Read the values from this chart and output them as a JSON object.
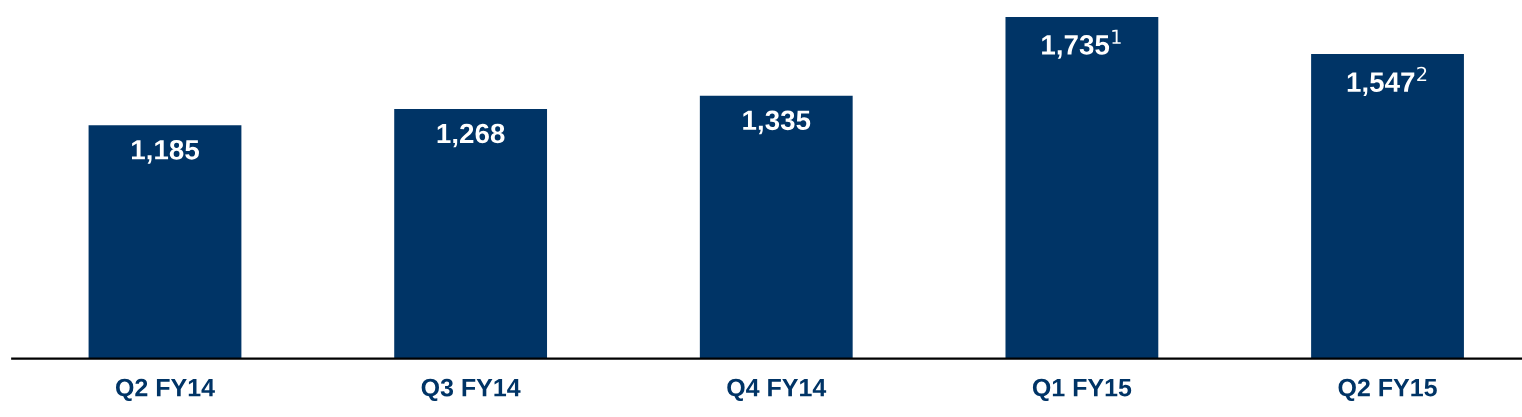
{
  "chart_data": {
    "type": "bar",
    "categories": [
      "Q2 FY14",
      "Q3 FY14",
      "Q4 FY14",
      "Q1 FY15",
      "Q2 FY15"
    ],
    "values": [
      1185,
      1268,
      1335,
      1735,
      1547
    ],
    "value_labels": [
      "1,185",
      "1,268",
      "1,335",
      "1,735$^{1}$",
      "1,547$^{2}$"
    ],
    "color": "#003466",
    "tick_labels": "x",
    "grid": false,
    "legend": false
  }
}
